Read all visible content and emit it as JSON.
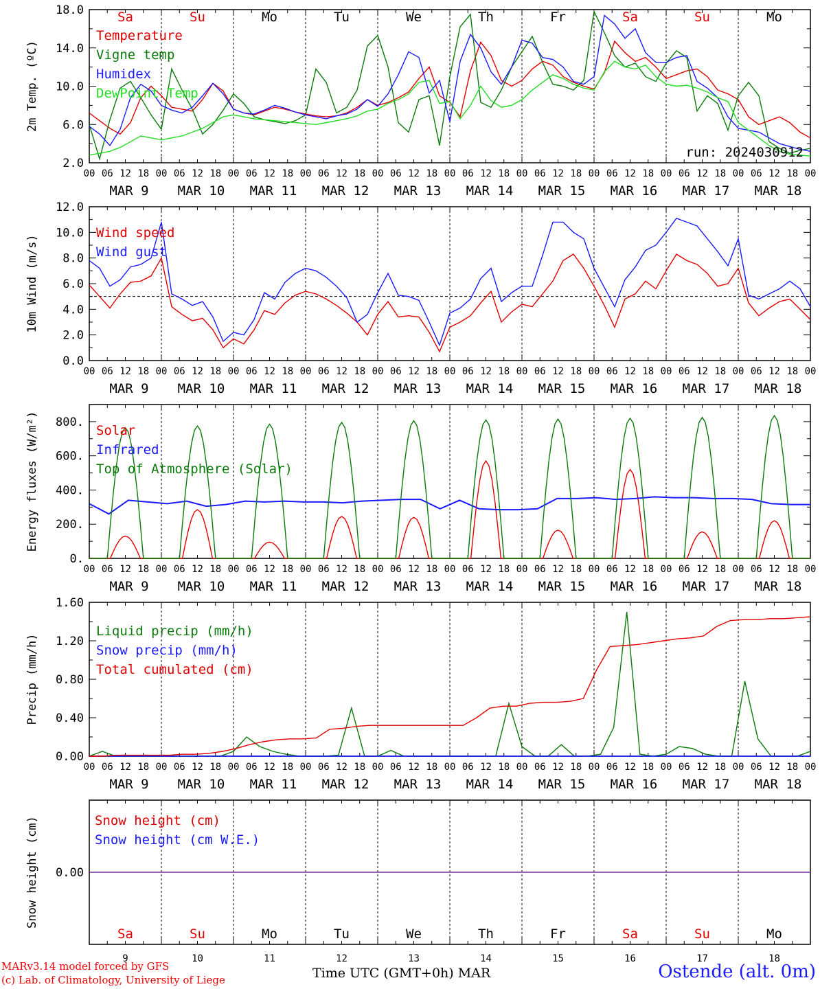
{
  "axis": {
    "x_hours": [
      "00",
      "06",
      "12",
      "18"
    ],
    "x_last": "00",
    "dates": [
      "MAR  9",
      "MAR 10",
      "MAR 11",
      "MAR 12",
      "MAR 13",
      "MAR 14",
      "MAR 15",
      "MAR 16",
      "MAR 17",
      "MAR 18"
    ],
    "days": [
      "Sa",
      "Su",
      "Mo",
      "Tu",
      "We",
      "Th",
      "Fr",
      "Sa",
      "Su",
      "Mo"
    ],
    "day_colors": [
      "#e00000",
      "#e00000",
      "#000000",
      "#000000",
      "#000000",
      "#000000",
      "#000000",
      "#e00000",
      "#e00000",
      "#000000"
    ],
    "bottom_numbers": [
      "9",
      "10",
      "11",
      "12",
      "13",
      "14",
      "15",
      "16",
      "17",
      "18"
    ]
  },
  "footer": {
    "model": "MARv3.14 model forced by GFS",
    "credit": "(c) Lab. of Climatology, University of Liege",
    "time_label": "Time UTC (GMT+0h) MAR",
    "station": "Ostende (alt. 0m)"
  },
  "chart_data": [
    {
      "type": "line",
      "ylabel": "2m Temp. (ºC)",
      "ylim": [
        2,
        18
      ],
      "yticks": [
        "2.0",
        "6.0",
        "10.0",
        "14.0",
        "18.0"
      ],
      "annotation": "run: 2024030912",
      "series": [
        {
          "name": "Temperature",
          "color": "#e00000",
          "values": [
            7.2,
            6.4,
            5.6,
            5.0,
            6.2,
            8.8,
            10.0,
            9.0,
            7.8,
            7.6,
            7.4,
            8.6,
            10.3,
            9.5,
            7.6,
            7.2,
            7.0,
            7.4,
            7.8,
            7.6,
            7.3,
            7.1,
            6.9,
            6.8,
            6.9,
            7.2,
            7.8,
            8.6,
            8.0,
            8.3,
            8.8,
            9.4,
            10.8,
            12.0,
            9.0,
            8.3,
            6.8,
            11.6,
            14.6,
            13.2,
            10.6,
            10.0,
            10.6,
            11.8,
            12.6,
            12.2,
            11.0,
            10.4,
            10.0,
            9.7,
            11.4,
            14.7,
            13.5,
            12.6,
            13.0,
            12.0,
            10.8,
            11.2,
            11.6,
            11.8,
            11.0,
            9.6,
            9.2,
            8.6,
            6.8,
            6.0,
            6.4,
            6.8,
            6.2,
            5.2,
            4.6
          ]
        },
        {
          "name": "Vigne temp",
          "color": "#0a7a0a",
          "values": [
            6.0,
            2.4,
            6.5,
            9.8,
            10.5,
            8.8,
            7.0,
            5.5,
            11.8,
            9.6,
            7.6,
            5.0,
            6.0,
            7.5,
            9.2,
            8.2,
            6.8,
            6.5,
            6.3,
            6.1,
            6.4,
            7.0,
            11.8,
            10.4,
            7.2,
            7.8,
            9.6,
            14.2,
            15.3,
            12.0,
            6.2,
            5.2,
            8.6,
            9.0,
            3.8,
            11.0,
            16.2,
            17.5,
            8.3,
            7.8,
            9.6,
            12.0,
            13.6,
            15.2,
            12.5,
            10.2,
            10.0,
            9.6,
            10.6,
            17.8,
            15.6,
            13.2,
            12.0,
            12.4,
            11.0,
            10.5,
            12.4,
            13.7,
            13.0,
            7.4,
            9.0,
            8.2,
            5.4,
            9.0,
            10.4,
            9.0,
            4.2,
            3.5,
            3.0,
            3.3,
            3.5
          ]
        },
        {
          "name": "Humidex",
          "color": "#1a1aff",
          "values": [
            5.8,
            5.0,
            3.8,
            5.5,
            8.8,
            10.2,
            9.5,
            8.0,
            7.5,
            7.2,
            7.8,
            9.0,
            10.3,
            9.2,
            7.6,
            7.2,
            7.1,
            7.5,
            8.0,
            7.7,
            7.3,
            7.0,
            6.8,
            6.6,
            6.9,
            7.1,
            7.6,
            8.6,
            7.9,
            9.2,
            11.2,
            13.6,
            13.0,
            9.3,
            10.6,
            6.3,
            12.6,
            15.4,
            14.0,
            11.5,
            10.2,
            12.0,
            14.8,
            14.5,
            13.0,
            12.8,
            12.0,
            10.5,
            10.2,
            11.0,
            17.4,
            16.5,
            15.0,
            16.0,
            13.5,
            12.5,
            12.5,
            13.0,
            13.2,
            10.5,
            9.8,
            8.8,
            6.8,
            5.6,
            5.4,
            5.2,
            4.6,
            4.0,
            3.7,
            3.4,
            3.2
          ]
        },
        {
          "name": "DewPoint Temp",
          "color": "#22dd22",
          "values": [
            2.8,
            3.0,
            3.2,
            3.6,
            4.2,
            4.8,
            4.6,
            4.4,
            4.6,
            4.8,
            5.2,
            5.6,
            6.2,
            6.8,
            7.0,
            6.8,
            6.6,
            6.5,
            6.4,
            6.3,
            6.2,
            6.1,
            6.0,
            6.2,
            6.4,
            6.6,
            6.9,
            7.4,
            7.6,
            8.2,
            8.6,
            9.2,
            10.4,
            10.6,
            8.2,
            8.4,
            6.6,
            8.0,
            10.0,
            8.5,
            7.8,
            8.0,
            8.6,
            9.6,
            10.4,
            11.2,
            10.8,
            10.2,
            9.8,
            9.6,
            11.5,
            12.6,
            12.0,
            11.8,
            12.2,
            11.0,
            10.2,
            10.0,
            10.1,
            9.8,
            9.4,
            8.8,
            8.4,
            6.2,
            5.4,
            4.6,
            3.8,
            3.2,
            2.9,
            2.8,
            2.7
          ]
        }
      ]
    },
    {
      "type": "line",
      "ylabel": "10m Wind (m/s)",
      "ylim": [
        0,
        12
      ],
      "yticks": [
        "0.0",
        "2.0",
        "4.0",
        "6.0",
        "8.0",
        "10.0",
        "12.0"
      ],
      "reference_line": 5.0,
      "series": [
        {
          "name": "Wind speed",
          "color": "#e00000",
          "values": [
            5.9,
            5.0,
            4.1,
            5.2,
            6.1,
            6.2,
            6.6,
            8.0,
            4.2,
            3.6,
            3.1,
            3.3,
            2.4,
            1.0,
            1.7,
            1.3,
            2.4,
            3.9,
            3.6,
            4.5,
            5.1,
            5.4,
            5.2,
            4.8,
            4.3,
            3.7,
            3.0,
            2.0,
            3.6,
            4.6,
            3.4,
            3.5,
            3.4,
            2.2,
            0.7,
            2.6,
            3.0,
            3.5,
            4.5,
            5.4,
            3.0,
            3.8,
            4.4,
            4.2,
            5.2,
            6.2,
            7.8,
            8.3,
            7.2,
            5.8,
            4.3,
            2.6,
            4.8,
            5.2,
            6.2,
            5.6,
            7.0,
            8.3,
            7.8,
            7.5,
            6.8,
            5.8,
            6.0,
            7.2,
            4.5,
            3.5,
            4.1,
            4.6,
            4.8,
            4.0,
            3.2
          ]
        },
        {
          "name": "Wind gust",
          "color": "#1a1aff",
          "values": [
            7.8,
            7.2,
            5.8,
            6.3,
            7.3,
            7.5,
            8.0,
            10.8,
            5.2,
            4.8,
            4.3,
            4.6,
            3.4,
            1.5,
            2.2,
            2.0,
            3.2,
            5.3,
            4.8,
            6.1,
            6.8,
            7.2,
            7.0,
            6.5,
            5.8,
            4.9,
            3.0,
            3.6,
            5.3,
            6.8,
            5.1,
            5.0,
            4.7,
            3.0,
            1.2,
            3.7,
            4.1,
            4.8,
            6.4,
            7.2,
            4.6,
            5.3,
            5.8,
            5.8,
            8.2,
            10.8,
            10.8,
            10.0,
            9.5,
            7.2,
            5.7,
            4.2,
            6.3,
            7.3,
            8.6,
            9.0,
            10.0,
            11.1,
            10.8,
            10.5,
            9.5,
            8.5,
            7.4,
            9.5,
            5.1,
            4.8,
            5.2,
            5.6,
            6.2,
            5.6,
            4.2
          ]
        }
      ]
    },
    {
      "type": "line",
      "ylabel": "Energy fluxes (W/m²)",
      "ylim": [
        0,
        900
      ],
      "yticks": [
        "0.",
        "200.",
        "400.",
        "600.",
        "800."
      ],
      "ytick_values": [
        0,
        200,
        400,
        600,
        800
      ],
      "series": [
        {
          "name": "Solar",
          "peaks": [
            130,
            285,
            95,
            245,
            240,
            570,
            165,
            520,
            155,
            220
          ],
          "color": "#e00000"
        },
        {
          "name": "Infrared",
          "color": "#1a1aff",
          "values": [
            320,
            260,
            340,
            330,
            320,
            335,
            305,
            315,
            335,
            330,
            335,
            330,
            330,
            325,
            335,
            340,
            345,
            345,
            290,
            340,
            290,
            285,
            285,
            290,
            350,
            350,
            355,
            345,
            350,
            360,
            355,
            355,
            350,
            350,
            345,
            320,
            315,
            315
          ]
        },
        {
          "name": "Top of Atmosphere (Solar)",
          "peaks": [
            765,
            775,
            785,
            795,
            805,
            810,
            815,
            820,
            825,
            835
          ],
          "color": "#0a7a0a"
        }
      ]
    },
    {
      "type": "line",
      "ylabel": "Precip (mm/h)",
      "ylim": [
        0,
        1.6
      ],
      "yticks": [
        "0.00",
        "0.40",
        "0.80",
        "1.20",
        "1.60"
      ],
      "series": [
        {
          "name": "Liquid precip (mm/h)",
          "color": "#0a7a0a",
          "values": [
            0,
            0.05,
            0,
            0,
            0,
            0,
            0,
            0,
            0,
            0,
            0,
            0.05,
            0.2,
            0.1,
            0.05,
            0.02,
            0,
            0,
            0,
            0.01,
            0.5,
            0,
            0,
            0.06,
            0,
            0,
            0,
            0,
            0,
            0,
            0,
            0,
            0.55,
            0.1,
            0,
            0,
            0.12,
            0,
            0,
            0.02,
            0.3,
            1.5,
            0.02,
            0,
            0.02,
            0.1,
            0.08,
            0.02,
            0,
            0,
            0.78,
            0.18,
            0,
            0,
            0,
            0.05
          ]
        },
        {
          "name": "Snow precip (mm/h)",
          "color": "#1a1aff",
          "values": [
            0,
            0,
            0,
            0,
            0,
            0,
            0,
            0,
            0,
            0,
            0,
            0,
            0,
            0,
            0,
            0,
            0,
            0,
            0,
            0,
            0,
            0,
            0,
            0,
            0,
            0,
            0,
            0,
            0,
            0,
            0,
            0,
            0,
            0,
            0,
            0,
            0,
            0,
            0,
            0,
            0,
            0,
            0,
            0,
            0,
            0,
            0,
            0,
            0,
            0,
            0,
            0,
            0,
            0,
            0,
            0
          ]
        },
        {
          "name": "Total cumulated (cm)",
          "color": "#e00000",
          "values": [
            0,
            0,
            0.01,
            0.01,
            0.01,
            0.01,
            0.01,
            0.02,
            0.02,
            0.03,
            0.05,
            0.08,
            0.12,
            0.15,
            0.17,
            0.18,
            0.18,
            0.19,
            0.28,
            0.29,
            0.31,
            0.32,
            0.32,
            0.32,
            0.32,
            0.32,
            0.32,
            0.32,
            0.32,
            0.4,
            0.5,
            0.52,
            0.52,
            0.55,
            0.56,
            0.56,
            0.57,
            0.6,
            0.9,
            1.14,
            1.15,
            1.16,
            1.18,
            1.2,
            1.22,
            1.23,
            1.25,
            1.35,
            1.41,
            1.42,
            1.42,
            1.43,
            1.43,
            1.44,
            1.45
          ]
        }
      ]
    },
    {
      "type": "line",
      "ylabel": "Snow height (cm)",
      "yticks": [
        "0.00"
      ],
      "series": [
        {
          "name": "Snow height (cm)",
          "color": "#e00000"
        },
        {
          "name": "Snow height (cm W.E.)",
          "color": "#1a1aff"
        }
      ]
    }
  ]
}
